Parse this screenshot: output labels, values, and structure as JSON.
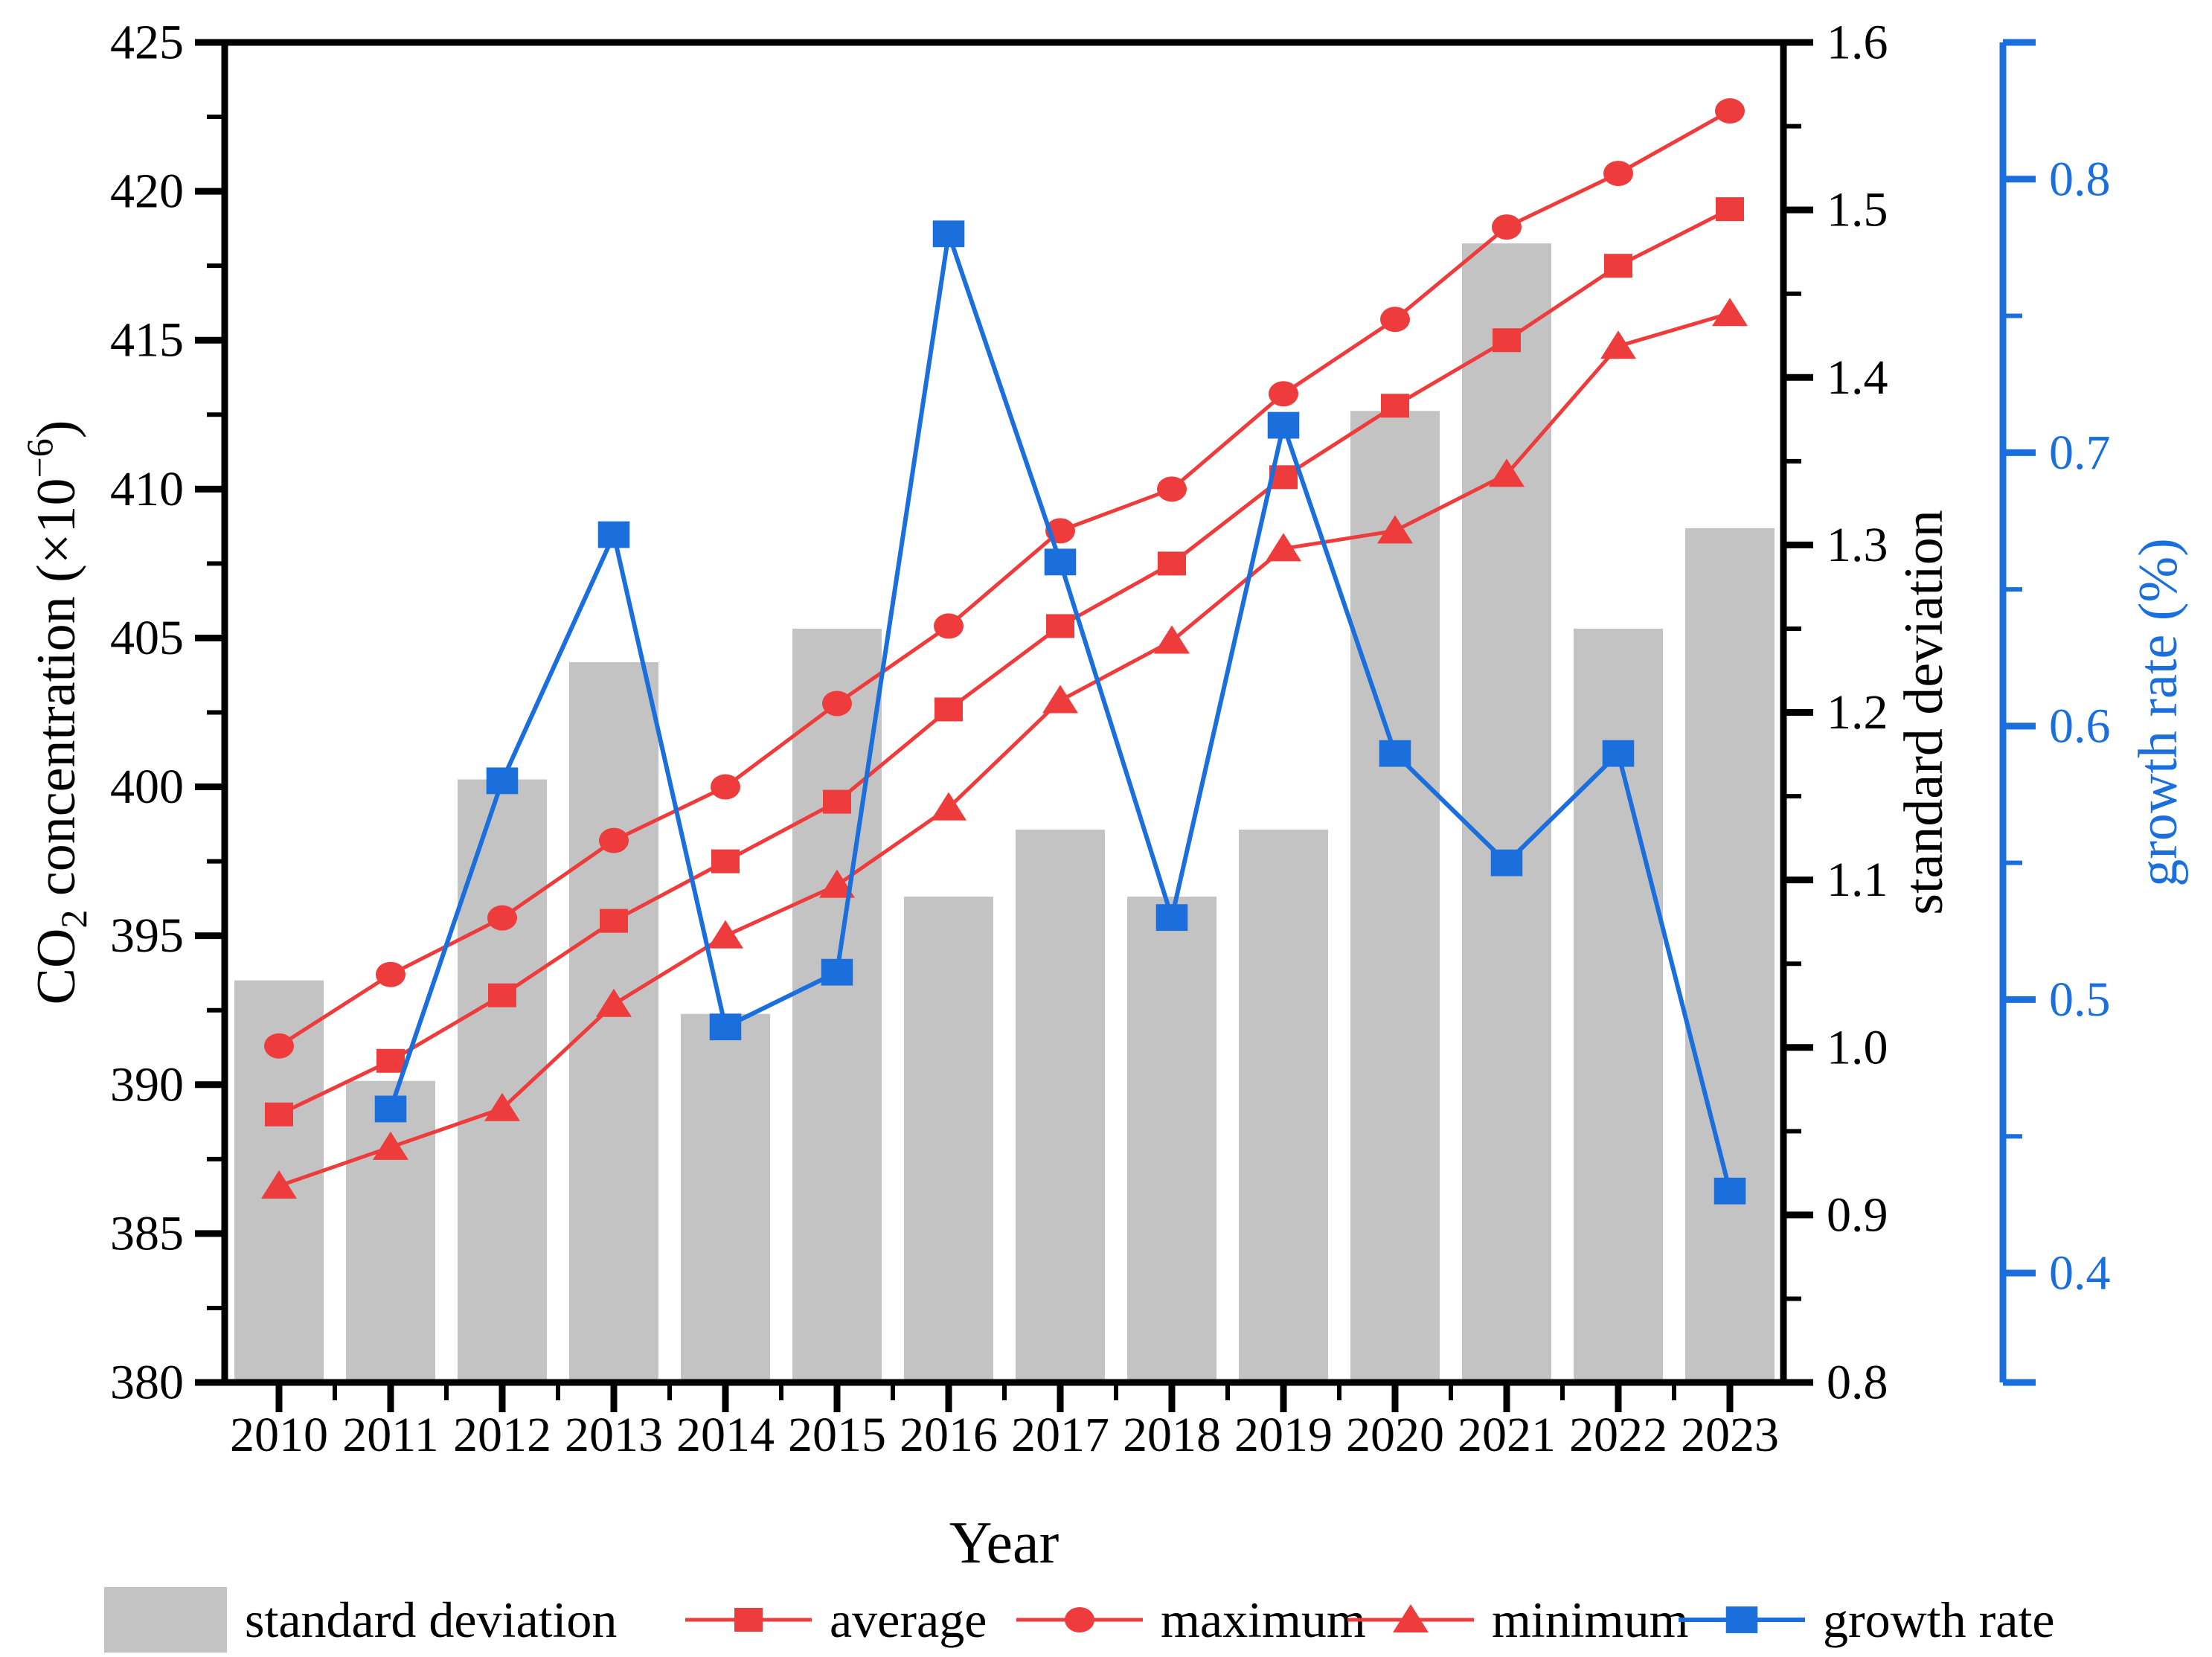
{
  "figure": {
    "kind": "scientific combo chart",
    "background": "#ffffff"
  },
  "chart_data": {
    "type": "bar",
    "subtype": "combo-bar-line-3axis",
    "title": "",
    "categories": [
      2010,
      2011,
      2012,
      2013,
      2014,
      2015,
      2016,
      2017,
      2018,
      2019,
      2020,
      2021,
      2022,
      2023
    ],
    "series": [
      {
        "name": "standard deviation",
        "type": "bar",
        "axis": "right",
        "marker": "bar",
        "color": "#c3c3c3",
        "values": [
          1.04,
          0.98,
          1.16,
          1.23,
          1.02,
          1.25,
          1.09,
          1.13,
          1.09,
          1.13,
          1.38,
          1.48,
          1.25,
          1.31
        ]
      },
      {
        "name": "average",
        "type": "line",
        "axis": "left",
        "marker": "square",
        "color": "#ee3b3b",
        "values": [
          389.0,
          390.8,
          393.0,
          395.5,
          397.5,
          399.5,
          402.6,
          405.4,
          407.5,
          410.4,
          412.8,
          415.0,
          417.5,
          419.4
        ]
      },
      {
        "name": "maximum",
        "type": "line",
        "axis": "left",
        "marker": "circle",
        "color": "#ee3b3b",
        "values": [
          391.3,
          393.7,
          395.6,
          398.2,
          400.0,
          402.8,
          405.4,
          408.6,
          410.0,
          413.2,
          415.7,
          418.8,
          420.6,
          422.7
        ]
      },
      {
        "name": "minimum",
        "type": "line",
        "axis": "left",
        "marker": "triangle",
        "color": "#ee3b3b",
        "values": [
          386.6,
          387.9,
          389.2,
          392.7,
          395.0,
          396.7,
          399.3,
          402.9,
          404.9,
          408.0,
          408.6,
          410.5,
          414.8,
          415.9
        ]
      },
      {
        "name": "growth rate",
        "type": "line",
        "axis": "far_right",
        "marker": "square",
        "color": "#1b6fdc",
        "values": [
          null,
          0.46,
          0.58,
          0.67,
          0.49,
          0.51,
          0.78,
          0.66,
          0.53,
          0.71,
          0.59,
          0.55,
          0.59,
          0.43
        ]
      }
    ],
    "axes": {
      "x": {
        "title": "Year",
        "labels": [
          "2010",
          "2011",
          "2012",
          "2013",
          "2014",
          "2015",
          "2016",
          "2017",
          "2018",
          "2019",
          "2020",
          "2021",
          "2022",
          "2023"
        ]
      },
      "left": {
        "title_parts": [
          {
            "t": "CO"
          },
          {
            "t": "2",
            "style": "sub"
          },
          {
            "t": " concentration (×10"
          },
          {
            "t": "−6",
            "style": "sup"
          },
          {
            "t": ")"
          }
        ],
        "min": 380,
        "max": 425,
        "major_ticks": [
          380,
          385,
          390,
          395,
          400,
          405,
          410,
          415,
          420,
          425
        ],
        "minor_step": 2.5,
        "tick_format": 0,
        "color": "#000000"
      },
      "right": {
        "title": "standard deviation",
        "min": 0.8,
        "max": 1.6,
        "major_ticks": [
          0.8,
          0.9,
          1.0,
          1.1,
          1.2,
          1.3,
          1.4,
          1.5,
          1.6
        ],
        "minor_step": 0.05,
        "tick_format": 1,
        "color": "#000000"
      },
      "far_right": {
        "title": "growth rate (%)",
        "min": 0.36,
        "max": 0.85,
        "major_ticks": [
          0.4,
          0.5,
          0.6,
          0.7,
          0.8
        ],
        "minors": [
          0.45,
          0.55,
          0.65,
          0.75
        ],
        "tick_format": 1,
        "color": "#1b6fdc"
      }
    },
    "legend_position": "bottom",
    "grid": false
  }
}
